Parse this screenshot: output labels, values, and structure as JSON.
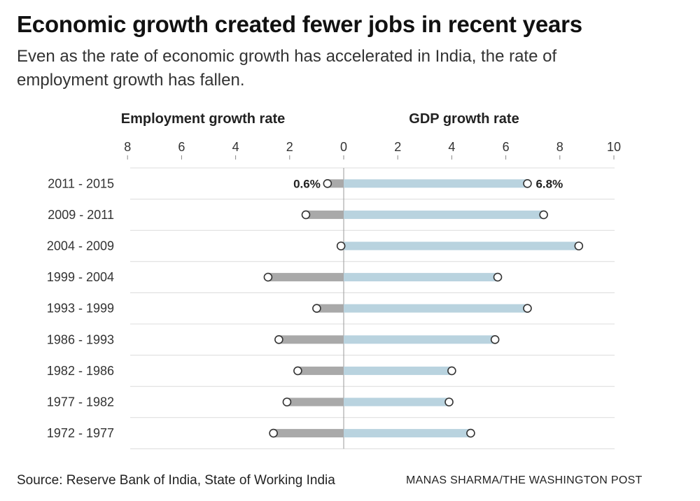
{
  "header": {
    "title": "Economic growth created fewer jobs in recent years",
    "subtitle": "Even as the rate of economic growth has accelerated in India, the rate of employment growth has fallen."
  },
  "footer": {
    "source": "Source: Reserve Bank of India, State of Working India",
    "credit": "MANAS SHARMA/THE WASHINGTON POST"
  },
  "colors": {
    "employment_bar": "#a9a9a9",
    "gdp_bar": "#b9d3df",
    "gridline": "#dcdcdc",
    "zero_line": "#999999"
  },
  "chart_data": {
    "type": "bar",
    "orientation": "horizontal-diverging",
    "categories": [
      "2011 - 2015",
      "2009 - 2011",
      "2004 - 2009",
      "1999 - 2004",
      "1993 - 1999",
      "1986 - 1993",
      "1982 - 1986",
      "1977 - 1982",
      "1972 - 1977"
    ],
    "series": [
      {
        "name": "Employment growth rate",
        "side": "left",
        "values": [
          0.6,
          1.4,
          0.1,
          2.8,
          1.0,
          2.4,
          1.7,
          2.1,
          2.6
        ]
      },
      {
        "name": "GDP growth rate",
        "side": "right",
        "values": [
          6.8,
          7.4,
          8.7,
          5.7,
          6.8,
          5.6,
          4.0,
          3.9,
          4.7
        ]
      }
    ],
    "left_ticks": [
      "8",
      "6",
      "4",
      "2"
    ],
    "center_tick": "0",
    "right_ticks": [
      "2",
      "4",
      "6",
      "8",
      "10"
    ],
    "xlim": [
      0,
      10
    ],
    "annotations": [
      {
        "row": 0,
        "series": 0,
        "text": "0.6%"
      },
      {
        "row": 0,
        "series": 1,
        "text": "6.8%"
      }
    ],
    "grid": true,
    "legend": "none"
  }
}
